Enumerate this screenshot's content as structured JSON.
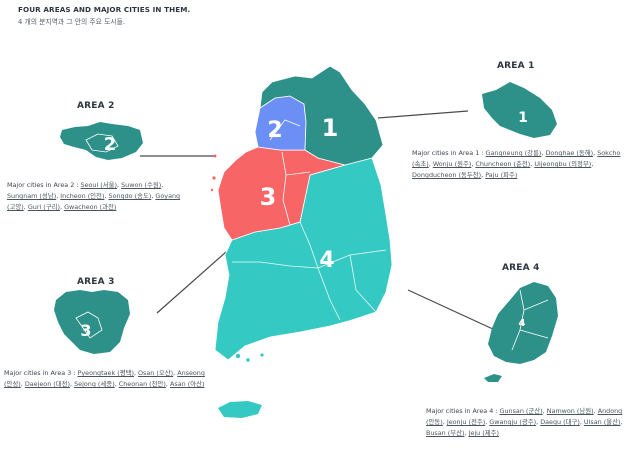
{
  "header": {
    "title_en": "FOUR AREAS AND MAJOR CITIES IN THEM.",
    "title_ko": "4 개의 분지역과 그 안의 주요 도시들."
  },
  "colors": {
    "area1": "#2e9189",
    "area2": "#6c8ff5",
    "area3": "#f86567",
    "area4": "#35c9c4",
    "leader": "#4a4a4a"
  },
  "map_labels": {
    "area1": "1",
    "area2": "2",
    "area3": "3",
    "area4": "4"
  },
  "areas": [
    {
      "title": "AREA 1",
      "lead": "Major cities in Area 1 :",
      "cities": [
        "Gangneung (강릉)",
        "Donghae (동해)",
        "Sokcho (속초)",
        "Wonju (원주)",
        "Chuncheon (춘천)",
        "Uijeongbu (의정부)",
        "Dongducheon (동두천)",
        "Paju (파주)"
      ]
    },
    {
      "title": "AREA 2",
      "lead": "Major cities in Area 2 :",
      "cities": [
        "Seoul (서울)",
        "Suwon (수원)",
        "Sungnam (성남)",
        "Incheon (인천)",
        "Songdo (송도)",
        "Goyang (고양)",
        "Guri (구리)",
        "Gwacheon (과천)"
      ]
    },
    {
      "title": "AREA 3",
      "lead": "Major cities in Area 3 :",
      "cities": [
        "Pyeongtaek (평택)",
        "Osan (오산)",
        "Anseong (안성)",
        "Daejeon (대전)",
        "Sejong (세종)",
        "Cheonan (천안)",
        "Asan (아산)"
      ]
    },
    {
      "title": "AREA 4",
      "lead": "Major cities in Area 4 :",
      "cities": [
        "Gunsan (군산)",
        "Namwon (남원)",
        "Andong (안동)",
        "Jeonju (전주)",
        "Gwangju (광주)",
        "Daegu (대구)",
        "Ulsan (울산)",
        "Busan (부산)",
        "Jeju (제주)"
      ]
    }
  ]
}
